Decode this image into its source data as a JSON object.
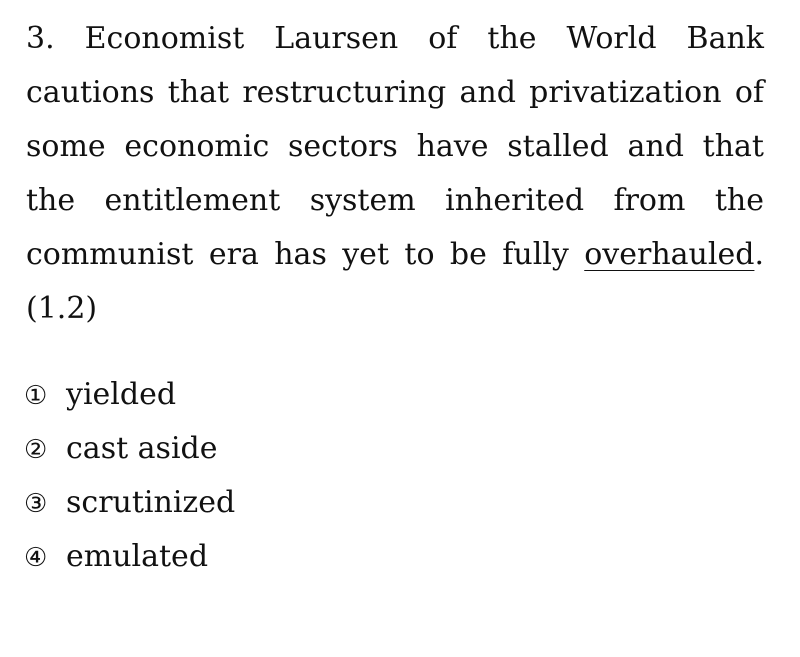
{
  "question": {
    "number": "3.",
    "text_before": "Economist Laursen of the World Bank cautions that restructuring and privatization of some economic sectors have stalled and that the entitlement system inherited from the communist era has yet to be fully",
    "underlined_word": "overhauled",
    "text_after": ".",
    "reference": "(1.2)"
  },
  "options": [
    {
      "marker": "①",
      "text": "yielded"
    },
    {
      "marker": "②",
      "text": "cast aside"
    },
    {
      "marker": "③",
      "text": "scrutinized"
    },
    {
      "marker": "④",
      "text": "emulated"
    }
  ]
}
